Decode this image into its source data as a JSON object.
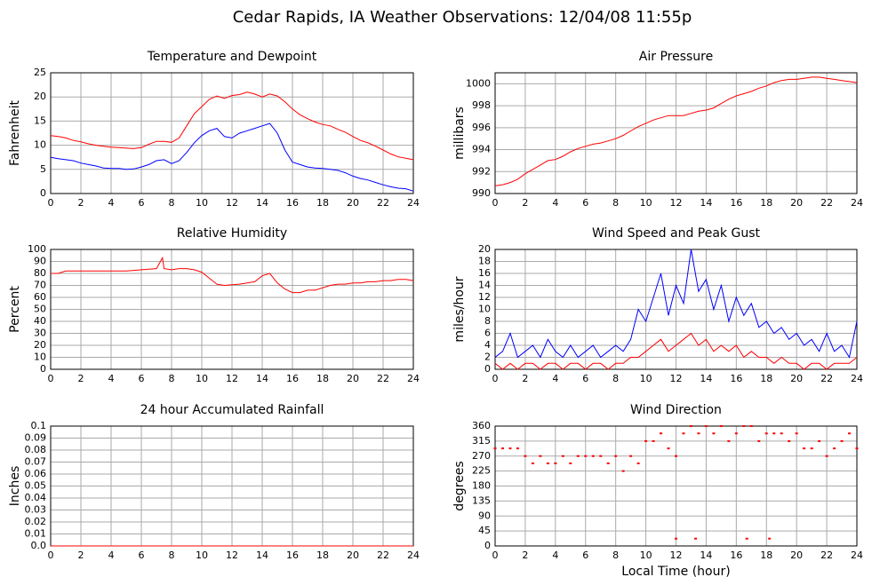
{
  "title": "Cedar Rapids, IA Weather Observations: 12/04/08 11:55p",
  "chart_data": [
    {
      "type": "line",
      "title": "Temperature and Dewpoint",
      "ylabel": "Fahrenheit",
      "x": [
        0,
        0.5,
        1,
        1.5,
        2,
        2.5,
        3,
        3.5,
        4,
        4.5,
        5,
        5.5,
        6,
        6.5,
        7,
        7.5,
        8,
        8.5,
        9,
        9.5,
        10,
        10.5,
        11,
        11.5,
        12,
        12.5,
        13,
        13.5,
        14,
        14.5,
        15,
        15.5,
        16,
        16.5,
        17,
        17.5,
        18,
        18.5,
        19,
        19.5,
        20,
        20.5,
        21,
        21.5,
        22,
        22.5,
        23,
        23.5,
        24
      ],
      "series": [
        {
          "color": "#ff0000",
          "values": [
            12,
            11.8,
            11.5,
            11,
            10.7,
            10.3,
            10,
            9.8,
            9.6,
            9.5,
            9.4,
            9.3,
            9.5,
            10.2,
            10.8,
            10.8,
            10.6,
            11.5,
            14,
            16.5,
            18,
            19.5,
            20.2,
            19.7,
            20.3,
            20.5,
            21,
            20.6,
            20,
            20.6,
            20.2,
            19,
            17.5,
            16.3,
            15.5,
            14.8,
            14.3,
            14,
            13.3,
            12.7,
            11.8,
            11,
            10.5,
            9.8,
            9,
            8.2,
            7.6,
            7.3,
            7
          ]
        },
        {
          "color": "#0000ff",
          "values": [
            7.5,
            7.2,
            7,
            6.8,
            6.3,
            6,
            5.7,
            5.3,
            5.2,
            5.2,
            5,
            5.1,
            5.5,
            6,
            6.8,
            7,
            6.2,
            6.8,
            8.5,
            10.5,
            12,
            13,
            13.5,
            11.8,
            11.5,
            12.5,
            13,
            13.5,
            14,
            14.5,
            12.5,
            9,
            6.5,
            6,
            5.5,
            5.3,
            5.2,
            5,
            4.8,
            4.3,
            3.6,
            3.1,
            2.8,
            2.3,
            1.8,
            1.4,
            1.1,
            1,
            0.5
          ]
        }
      ],
      "xlim": [
        0,
        24
      ],
      "xticks": [
        0,
        2,
        4,
        6,
        8,
        10,
        12,
        14,
        16,
        18,
        20,
        22,
        24
      ],
      "ylim": [
        0,
        25
      ],
      "yticks": [
        0,
        5,
        10,
        15,
        20,
        25
      ],
      "grid": true
    },
    {
      "type": "line",
      "title": "Air Pressure",
      "ylabel": "millibars",
      "x": [
        0,
        0.5,
        1,
        1.5,
        2,
        2.5,
        3,
        3.5,
        4,
        4.5,
        5,
        5.5,
        6,
        6.5,
        7,
        7.5,
        8,
        8.5,
        9,
        9.5,
        10,
        10.5,
        11,
        11.5,
        12,
        12.5,
        13,
        13.5,
        14,
        14.5,
        15,
        15.5,
        16,
        16.5,
        17,
        17.5,
        18,
        18.5,
        19,
        19.5,
        20,
        20.5,
        21,
        21.5,
        22,
        22.5,
        23,
        23.5,
        24
      ],
      "series": [
        {
          "color": "#ff0000",
          "values": [
            990.7,
            990.8,
            991,
            991.3,
            991.8,
            992.2,
            992.6,
            993,
            993.1,
            993.4,
            993.8,
            994.1,
            994.3,
            994.5,
            994.6,
            994.8,
            995,
            995.3,
            995.7,
            996.1,
            996.4,
            996.7,
            996.9,
            997.1,
            997.1,
            997.1,
            997.3,
            997.5,
            997.6,
            997.8,
            998.2,
            998.6,
            998.9,
            999.1,
            999.3,
            999.6,
            999.8,
            1000.1,
            1000.3,
            1000.4,
            1000.4,
            1000.5,
            1000.6,
            1000.6,
            1000.5,
            1000.4,
            1000.3,
            1000.2,
            1000.1
          ]
        }
      ],
      "xlim": [
        0,
        24
      ],
      "xticks": [
        0,
        2,
        4,
        6,
        8,
        10,
        12,
        14,
        16,
        18,
        20,
        22,
        24
      ],
      "ylim": [
        990,
        1001
      ],
      "yticks": [
        990,
        992,
        994,
        996,
        998,
        1000
      ],
      "grid": true
    },
    {
      "type": "line",
      "title": "Relative Humidity",
      "ylabel": "Percent",
      "x": [
        0,
        0.5,
        1,
        1.5,
        2,
        2.5,
        3,
        3.5,
        4,
        4.5,
        5,
        5.5,
        6,
        6.5,
        7,
        7.4,
        7.5,
        8,
        8.5,
        9,
        9.5,
        10,
        10.5,
        11,
        11.5,
        12,
        12.5,
        13,
        13.5,
        14,
        14.5,
        15,
        15.5,
        16,
        16.5,
        17,
        17.5,
        18,
        18.5,
        19,
        19.5,
        20,
        20.5,
        21,
        21.5,
        22,
        22.5,
        23,
        23.5,
        24
      ],
      "series": [
        {
          "color": "#ff0000",
          "values": [
            80,
            80,
            82,
            82,
            82,
            82,
            82,
            82,
            82,
            82,
            82,
            82.5,
            83,
            83.5,
            84,
            93,
            84,
            83,
            84,
            84,
            83,
            81,
            76,
            71,
            70,
            70.5,
            71,
            72,
            73,
            78,
            80,
            72,
            67,
            64,
            64,
            66,
            66,
            68,
            70,
            71,
            71,
            72,
            72,
            73,
            73,
            74,
            74,
            75,
            75,
            74
          ]
        }
      ],
      "xlim": [
        0,
        24
      ],
      "xticks": [
        0,
        2,
        4,
        6,
        8,
        10,
        12,
        14,
        16,
        18,
        20,
        22,
        24
      ],
      "ylim": [
        0,
        100
      ],
      "yticks": [
        0,
        10,
        20,
        30,
        40,
        50,
        60,
        70,
        80,
        90,
        100
      ],
      "grid": true
    },
    {
      "type": "line",
      "title": "Wind Speed and Peak Gust",
      "ylabel": "miles/hour",
      "x": [
        0,
        0.5,
        1,
        1.5,
        2,
        2.5,
        3,
        3.5,
        4,
        4.5,
        5,
        5.5,
        6,
        6.5,
        7,
        7.5,
        8,
        8.5,
        9,
        9.5,
        10,
        10.5,
        11,
        11.5,
        12,
        12.5,
        13,
        13.5,
        14,
        14.5,
        15,
        15.5,
        16,
        16.5,
        17,
        17.5,
        18,
        18.5,
        19,
        19.5,
        20,
        20.5,
        21,
        21.5,
        22,
        22.5,
        23,
        23.5,
        24
      ],
      "series": [
        {
          "color": "#0000ff",
          "values": [
            2,
            3,
            6,
            2,
            3,
            4,
            2,
            5,
            3,
            2,
            4,
            2,
            3,
            4,
            2,
            3,
            4,
            3,
            5,
            10,
            8,
            12,
            16,
            9,
            14,
            11,
            20,
            13,
            15,
            10,
            14,
            8,
            12,
            9,
            11,
            7,
            8,
            6,
            7,
            5,
            6,
            4,
            5,
            3,
            6,
            3,
            4,
            2,
            8
          ]
        },
        {
          "color": "#ff0000",
          "values": [
            1,
            0,
            1,
            0,
            1,
            1,
            0,
            1,
            1,
            0,
            1,
            1,
            0,
            1,
            1,
            0,
            1,
            1,
            2,
            2,
            3,
            4,
            5,
            3,
            4,
            5,
            6,
            4,
            5,
            3,
            4,
            3,
            4,
            2,
            3,
            2,
            2,
            1,
            2,
            1,
            1,
            0,
            1,
            1,
            0,
            1,
            1,
            1,
            2
          ]
        }
      ],
      "xlim": [
        0,
        24
      ],
      "xticks": [
        0,
        2,
        4,
        6,
        8,
        10,
        12,
        14,
        16,
        18,
        20,
        22,
        24
      ],
      "ylim": [
        0,
        20
      ],
      "yticks": [
        0,
        2,
        4,
        6,
        8,
        10,
        12,
        14,
        16,
        18,
        20
      ],
      "grid": true
    },
    {
      "type": "line",
      "title": "24 hour Accumulated Rainfall",
      "ylabel": "Inches",
      "x": [
        0,
        24
      ],
      "series": [
        {
          "color": "#ff0000",
          "values": [
            0,
            0
          ]
        }
      ],
      "xlim": [
        0,
        24
      ],
      "xticks": [
        0,
        2,
        4,
        6,
        8,
        10,
        12,
        14,
        16,
        18,
        20,
        22,
        24
      ],
      "ylim": [
        0,
        0.1
      ],
      "yticks": [
        {
          "value": 0,
          "label": "0.0"
        },
        0.01,
        0.02,
        0.03,
        0.04,
        0.05,
        0.06,
        0.07,
        0.08,
        0.09,
        0.1
      ],
      "grid": true
    },
    {
      "type": "scatter",
      "title": "Wind Direction",
      "ylabel": "degrees",
      "xlabel": "Local Time (hour)",
      "x": [
        0,
        0.5,
        1,
        1.5,
        2,
        2.5,
        3,
        3.5,
        4,
        4.5,
        5,
        5.5,
        6,
        6.5,
        7,
        7.5,
        8,
        8.5,
        9,
        9.5,
        10,
        10.5,
        11,
        11.5,
        12,
        12.5,
        13,
        13.5,
        14,
        14.5,
        15,
        15.5,
        16,
        16.5,
        17,
        17.5,
        18,
        18.5,
        19,
        19.5,
        20,
        20.5,
        21,
        21.5,
        22,
        22.5,
        23,
        23.5,
        24,
        12,
        13.3,
        16.7,
        18.2
      ],
      "series": [
        {
          "color": "#ff0000",
          "values": [
            293,
            293,
            293,
            293,
            270,
            248,
            270,
            248,
            248,
            270,
            248,
            270,
            270,
            270,
            270,
            248,
            270,
            225,
            270,
            248,
            315,
            315,
            338,
            293,
            270,
            338,
            360,
            338,
            360,
            338,
            360,
            315,
            338,
            360,
            360,
            315,
            338,
            338,
            338,
            315,
            338,
            293,
            293,
            315,
            270,
            293,
            315,
            338,
            293,
            22,
            22,
            22,
            22
          ]
        }
      ],
      "xlim": [
        0,
        24
      ],
      "xticks": [
        0,
        2,
        4,
        6,
        8,
        10,
        12,
        14,
        16,
        18,
        20,
        22,
        24
      ],
      "ylim": [
        0,
        360
      ],
      "yticks": [
        0,
        45,
        90,
        135,
        180,
        225,
        270,
        315,
        360
      ],
      "grid": true
    }
  ]
}
